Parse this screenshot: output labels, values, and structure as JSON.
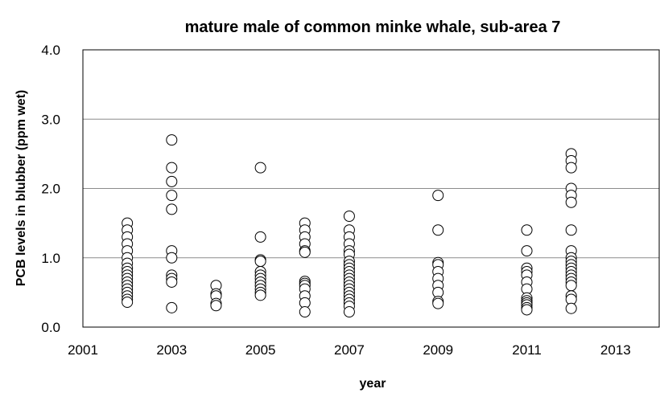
{
  "chart_data": {
    "type": "scatter",
    "title": "mature male of common minke whale, sub-area 7",
    "xlabel": "year",
    "ylabel": "PCB levels in blubber (ppm wet)",
    "xlim": [
      2001,
      2014
    ],
    "ylim": [
      0,
      4
    ],
    "x_ticks": [
      2001,
      2003,
      2005,
      2007,
      2009,
      2011,
      2013
    ],
    "x_tick_labels": [
      "2001",
      "2003",
      "2005",
      "2007",
      "2009",
      "2011",
      "2013"
    ],
    "y_ticks": [
      0,
      1,
      2,
      3,
      4
    ],
    "y_tick_labels": [
      "0.0",
      "1.0",
      "2.0",
      "3.0",
      "4.0"
    ],
    "grid": "horizontal",
    "legend": "none",
    "marker_color": "#000000",
    "series": [
      {
        "points": [
          [
            2002,
            1.5
          ],
          [
            2002,
            1.4
          ],
          [
            2002,
            1.3
          ],
          [
            2002,
            1.2
          ],
          [
            2002,
            1.1
          ],
          [
            2002,
            1.0
          ],
          [
            2002,
            0.92
          ],
          [
            2002,
            0.85
          ],
          [
            2002,
            0.8
          ],
          [
            2002,
            0.75
          ],
          [
            2002,
            0.7
          ],
          [
            2002,
            0.65
          ],
          [
            2002,
            0.6
          ],
          [
            2002,
            0.55
          ],
          [
            2002,
            0.5
          ],
          [
            2002,
            0.45
          ],
          [
            2002,
            0.4
          ],
          [
            2002,
            0.36
          ],
          [
            2003,
            2.7
          ],
          [
            2003,
            2.3
          ],
          [
            2003,
            2.1
          ],
          [
            2003,
            1.9
          ],
          [
            2003,
            1.7
          ],
          [
            2003,
            1.1
          ],
          [
            2003,
            1.0
          ],
          [
            2003,
            0.75
          ],
          [
            2003,
            0.7
          ],
          [
            2003,
            0.65
          ],
          [
            2003,
            0.28
          ],
          [
            2004,
            0.6
          ],
          [
            2004,
            0.48
          ],
          [
            2004,
            0.45
          ],
          [
            2004,
            0.34
          ],
          [
            2004,
            0.31
          ],
          [
            2005,
            2.3
          ],
          [
            2005,
            1.3
          ],
          [
            2005,
            0.97
          ],
          [
            2005,
            0.95
          ],
          [
            2005,
            0.8
          ],
          [
            2005,
            0.75
          ],
          [
            2005,
            0.7
          ],
          [
            2005,
            0.65
          ],
          [
            2005,
            0.6
          ],
          [
            2005,
            0.55
          ],
          [
            2005,
            0.5
          ],
          [
            2005,
            0.46
          ],
          [
            2006,
            1.5
          ],
          [
            2006,
            1.4
          ],
          [
            2006,
            1.3
          ],
          [
            2006,
            1.2
          ],
          [
            2006,
            1.1
          ],
          [
            2006,
            1.08
          ],
          [
            2006,
            0.66
          ],
          [
            2006,
            0.63
          ],
          [
            2006,
            0.6
          ],
          [
            2006,
            0.55
          ],
          [
            2006,
            0.45
          ],
          [
            2006,
            0.35
          ],
          [
            2006,
            0.22
          ],
          [
            2007,
            1.6
          ],
          [
            2007,
            1.4
          ],
          [
            2007,
            1.3
          ],
          [
            2007,
            1.2
          ],
          [
            2007,
            1.1
          ],
          [
            2007,
            1.05
          ],
          [
            2007,
            0.95
          ],
          [
            2007,
            0.9
          ],
          [
            2007,
            0.85
          ],
          [
            2007,
            0.8
          ],
          [
            2007,
            0.75
          ],
          [
            2007,
            0.7
          ],
          [
            2007,
            0.65
          ],
          [
            2007,
            0.6
          ],
          [
            2007,
            0.55
          ],
          [
            2007,
            0.5
          ],
          [
            2007,
            0.45
          ],
          [
            2007,
            0.4
          ],
          [
            2007,
            0.35
          ],
          [
            2007,
            0.3
          ],
          [
            2007,
            0.22
          ],
          [
            2009,
            1.9
          ],
          [
            2009,
            1.4
          ],
          [
            2009,
            0.93
          ],
          [
            2009,
            0.9
          ],
          [
            2009,
            0.8
          ],
          [
            2009,
            0.7
          ],
          [
            2009,
            0.6
          ],
          [
            2009,
            0.5
          ],
          [
            2009,
            0.37
          ],
          [
            2009,
            0.34
          ],
          [
            2011,
            1.4
          ],
          [
            2011,
            1.1
          ],
          [
            2011,
            0.85
          ],
          [
            2011,
            0.8
          ],
          [
            2011,
            0.75
          ],
          [
            2011,
            0.65
          ],
          [
            2011,
            0.55
          ],
          [
            2011,
            0.42
          ],
          [
            2011,
            0.38
          ],
          [
            2011,
            0.35
          ],
          [
            2011,
            0.32
          ],
          [
            2011,
            0.28
          ],
          [
            2011,
            0.25
          ],
          [
            2012,
            2.5
          ],
          [
            2012,
            2.4
          ],
          [
            2012,
            2.3
          ],
          [
            2012,
            2.0
          ],
          [
            2012,
            1.9
          ],
          [
            2012,
            1.8
          ],
          [
            2012,
            1.4
          ],
          [
            2012,
            1.1
          ],
          [
            2012,
            1.0
          ],
          [
            2012,
            0.95
          ],
          [
            2012,
            0.9
          ],
          [
            2012,
            0.85
          ],
          [
            2012,
            0.8
          ],
          [
            2012,
            0.75
          ],
          [
            2012,
            0.7
          ],
          [
            2012,
            0.65
          ],
          [
            2012,
            0.6
          ],
          [
            2012,
            0.45
          ],
          [
            2012,
            0.4
          ],
          [
            2012,
            0.27
          ]
        ]
      }
    ]
  }
}
